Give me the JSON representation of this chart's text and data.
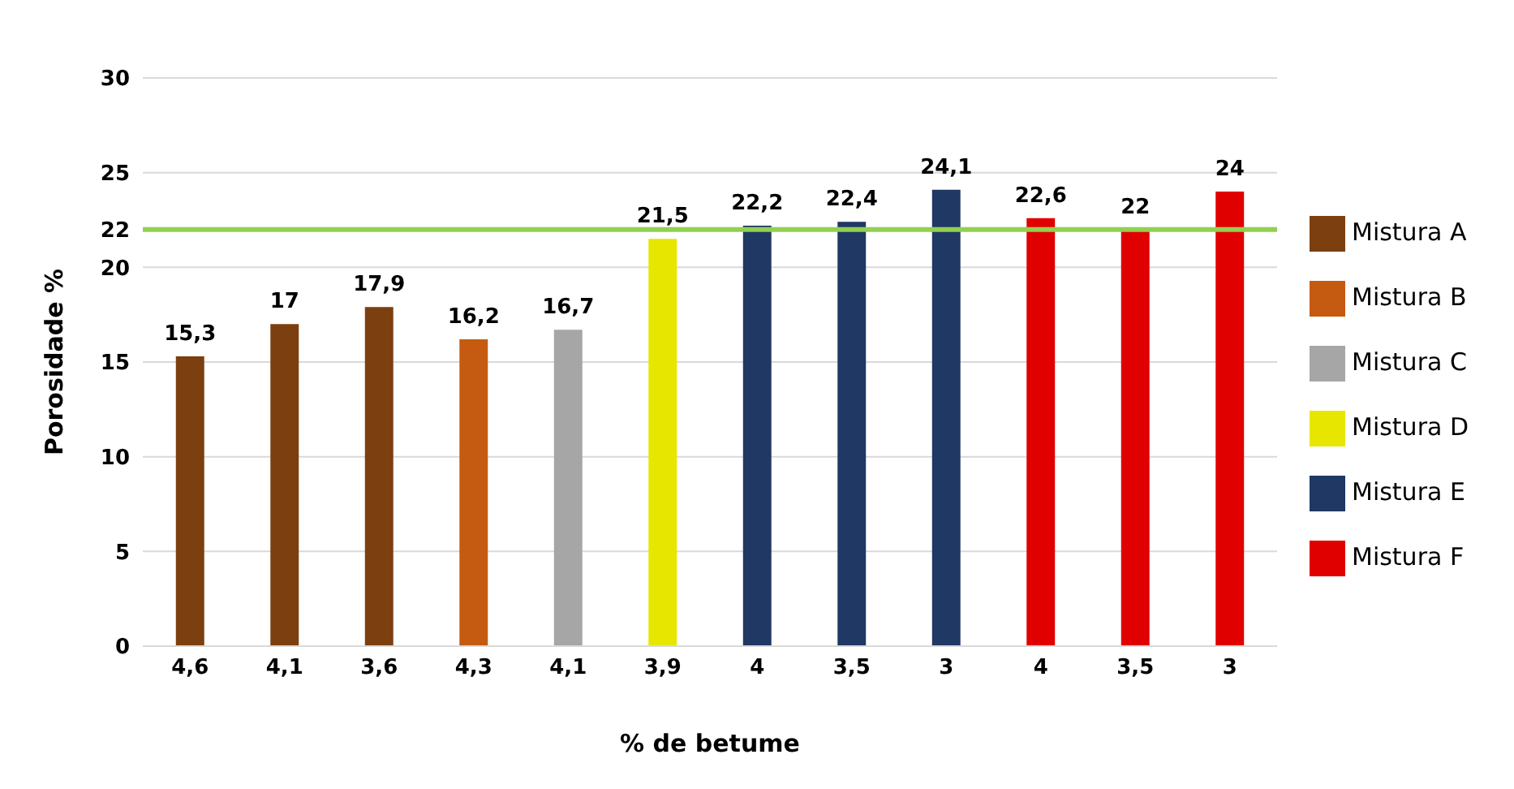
{
  "chart_data": {
    "type": "bar",
    "xlabel": "% de betume",
    "ylabel": "Porosidade %",
    "categories": [
      "4,6",
      "4,1",
      "3,6",
      "4,3",
      "4,1",
      "3,9",
      "4",
      "3,5",
      "3",
      "4",
      "3,5",
      "3"
    ],
    "series": [
      {
        "name": "Mistura A",
        "color": "#7b3f10",
        "values": [
          15.3,
          17,
          17.9,
          null,
          null,
          null,
          null,
          null,
          null,
          null,
          null,
          null
        ],
        "value_labels": [
          "15,3",
          "17",
          "17,9",
          null,
          null,
          null,
          null,
          null,
          null,
          null,
          null,
          null
        ]
      },
      {
        "name": "Mistura B",
        "color": "#c55a11",
        "values": [
          null,
          null,
          null,
          16.2,
          null,
          null,
          null,
          null,
          null,
          null,
          null,
          null
        ],
        "value_labels": [
          null,
          null,
          null,
          "16,2",
          null,
          null,
          null,
          null,
          null,
          null,
          null,
          null
        ]
      },
      {
        "name": "Mistura C",
        "color": "#a6a6a6",
        "values": [
          null,
          null,
          null,
          null,
          16.7,
          null,
          null,
          null,
          null,
          null,
          null,
          null
        ],
        "value_labels": [
          null,
          null,
          null,
          null,
          "16,7",
          null,
          null,
          null,
          null,
          null,
          null,
          null
        ]
      },
      {
        "name": "Mistura D",
        "color": "#e6e600",
        "values": [
          null,
          null,
          null,
          null,
          null,
          21.5,
          null,
          null,
          null,
          null,
          null,
          null
        ],
        "value_labels": [
          null,
          null,
          null,
          null,
          null,
          "21,5",
          null,
          null,
          null,
          null,
          null,
          null
        ]
      },
      {
        "name": "Mistura E",
        "color": "#1f3864",
        "values": [
          null,
          null,
          null,
          null,
          null,
          null,
          22.2,
          22.4,
          24.1,
          null,
          null,
          null
        ],
        "value_labels": [
          null,
          null,
          null,
          null,
          null,
          null,
          "22,2",
          "22,4",
          "24,1",
          null,
          null,
          null
        ]
      },
      {
        "name": "Mistura F",
        "color": "#e00000",
        "values": [
          null,
          null,
          null,
          null,
          null,
          null,
          null,
          null,
          null,
          22.6,
          22,
          24
        ],
        "value_labels": [
          null,
          null,
          null,
          null,
          null,
          null,
          null,
          null,
          null,
          "22,6",
          "22",
          "24"
        ]
      }
    ],
    "ylim": [
      0,
      30
    ],
    "yticks": [
      0,
      5,
      10,
      15,
      20,
      22,
      25,
      30
    ],
    "grid": "y",
    "legend": "right",
    "ref_lines": [
      {
        "axis": "y",
        "value": 22,
        "color": "#92d050"
      }
    ]
  }
}
